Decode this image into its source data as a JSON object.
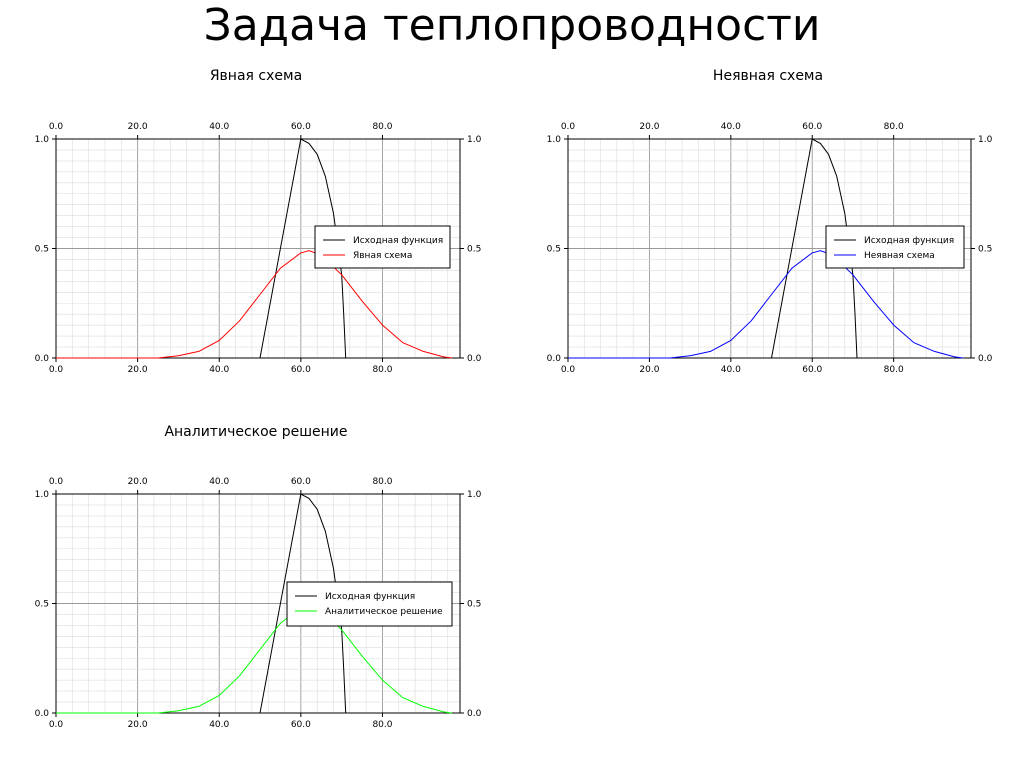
{
  "title": "Задача теплопроводности",
  "chart_data": [
    {
      "type": "line",
      "title": "Явная схема",
      "xlim": [
        0,
        99
      ],
      "ylim": [
        0,
        1
      ],
      "x_ticks": [
        "0.0",
        "20.0",
        "40.0",
        "60.0",
        "80.0"
      ],
      "y_ticks": [
        "0.0",
        "0.5",
        "1.0"
      ],
      "grid": true,
      "legend": "right-middle",
      "series": [
        {
          "name": "Исходная функция",
          "color": "#000000",
          "x": [
            0,
            50,
            60,
            62,
            64,
            66,
            68,
            70,
            70.5,
            71,
            99
          ],
          "y": [
            0,
            0,
            1.0,
            0.98,
            0.93,
            0.83,
            0.66,
            0.38,
            0.2,
            0,
            0
          ]
        },
        {
          "name": "Явная схема",
          "color": "#ff0000",
          "x": [
            0,
            25,
            30,
            35,
            40,
            45,
            50,
            55,
            60,
            62,
            65,
            70,
            75,
            80,
            85,
            90,
            95,
            97
          ],
          "y": [
            0,
            0.0,
            0.01,
            0.03,
            0.08,
            0.17,
            0.29,
            0.41,
            0.48,
            0.49,
            0.47,
            0.38,
            0.26,
            0.15,
            0.07,
            0.03,
            0.005,
            0
          ]
        }
      ]
    },
    {
      "type": "line",
      "title": "Неявная схема",
      "xlim": [
        0,
        99
      ],
      "ylim": [
        0,
        1
      ],
      "x_ticks": [
        "0.0",
        "20.0",
        "40.0",
        "60.0",
        "80.0"
      ],
      "y_ticks": [
        "0.0",
        "0.5",
        "1.0"
      ],
      "grid": true,
      "legend": "right-middle",
      "series": [
        {
          "name": "Исходная функция",
          "color": "#000000",
          "x": [
            0,
            50,
            60,
            62,
            64,
            66,
            68,
            70,
            70.5,
            71,
            99
          ],
          "y": [
            0,
            0,
            1.0,
            0.98,
            0.93,
            0.83,
            0.66,
            0.38,
            0.2,
            0,
            0
          ]
        },
        {
          "name": "Неявная схема",
          "color": "#0000ff",
          "x": [
            0,
            25,
            30,
            35,
            40,
            45,
            50,
            55,
            60,
            62,
            65,
            70,
            75,
            80,
            85,
            90,
            95,
            97
          ],
          "y": [
            0,
            0.0,
            0.01,
            0.03,
            0.08,
            0.17,
            0.29,
            0.41,
            0.48,
            0.49,
            0.47,
            0.38,
            0.26,
            0.15,
            0.07,
            0.03,
            0.005,
            0
          ]
        }
      ]
    },
    {
      "type": "line",
      "title": "Аналитическое решение",
      "xlim": [
        0,
        99
      ],
      "ylim": [
        0,
        1
      ],
      "x_ticks": [
        "0.0",
        "20.0",
        "40.0",
        "60.0",
        "80.0"
      ],
      "y_ticks": [
        "0.0",
        "0.5",
        "1.0"
      ],
      "grid": true,
      "legend": "right-middle",
      "series": [
        {
          "name": "Исходная функция",
          "color": "#000000",
          "x": [
            0,
            50,
            60,
            62,
            64,
            66,
            68,
            70,
            70.5,
            71,
            99
          ],
          "y": [
            0,
            0,
            1.0,
            0.98,
            0.93,
            0.83,
            0.66,
            0.38,
            0.2,
            0,
            0
          ]
        },
        {
          "name": "Аналитическое решение",
          "color": "#00ff00",
          "x": [
            0,
            25,
            30,
            35,
            40,
            45,
            50,
            55,
            60,
            62,
            65,
            70,
            75,
            80,
            85,
            90,
            95,
            97
          ],
          "y": [
            0,
            0.0,
            0.01,
            0.03,
            0.08,
            0.17,
            0.29,
            0.41,
            0.48,
            0.49,
            0.47,
            0.38,
            0.26,
            0.15,
            0.07,
            0.03,
            0.005,
            0
          ]
        }
      ]
    }
  ]
}
